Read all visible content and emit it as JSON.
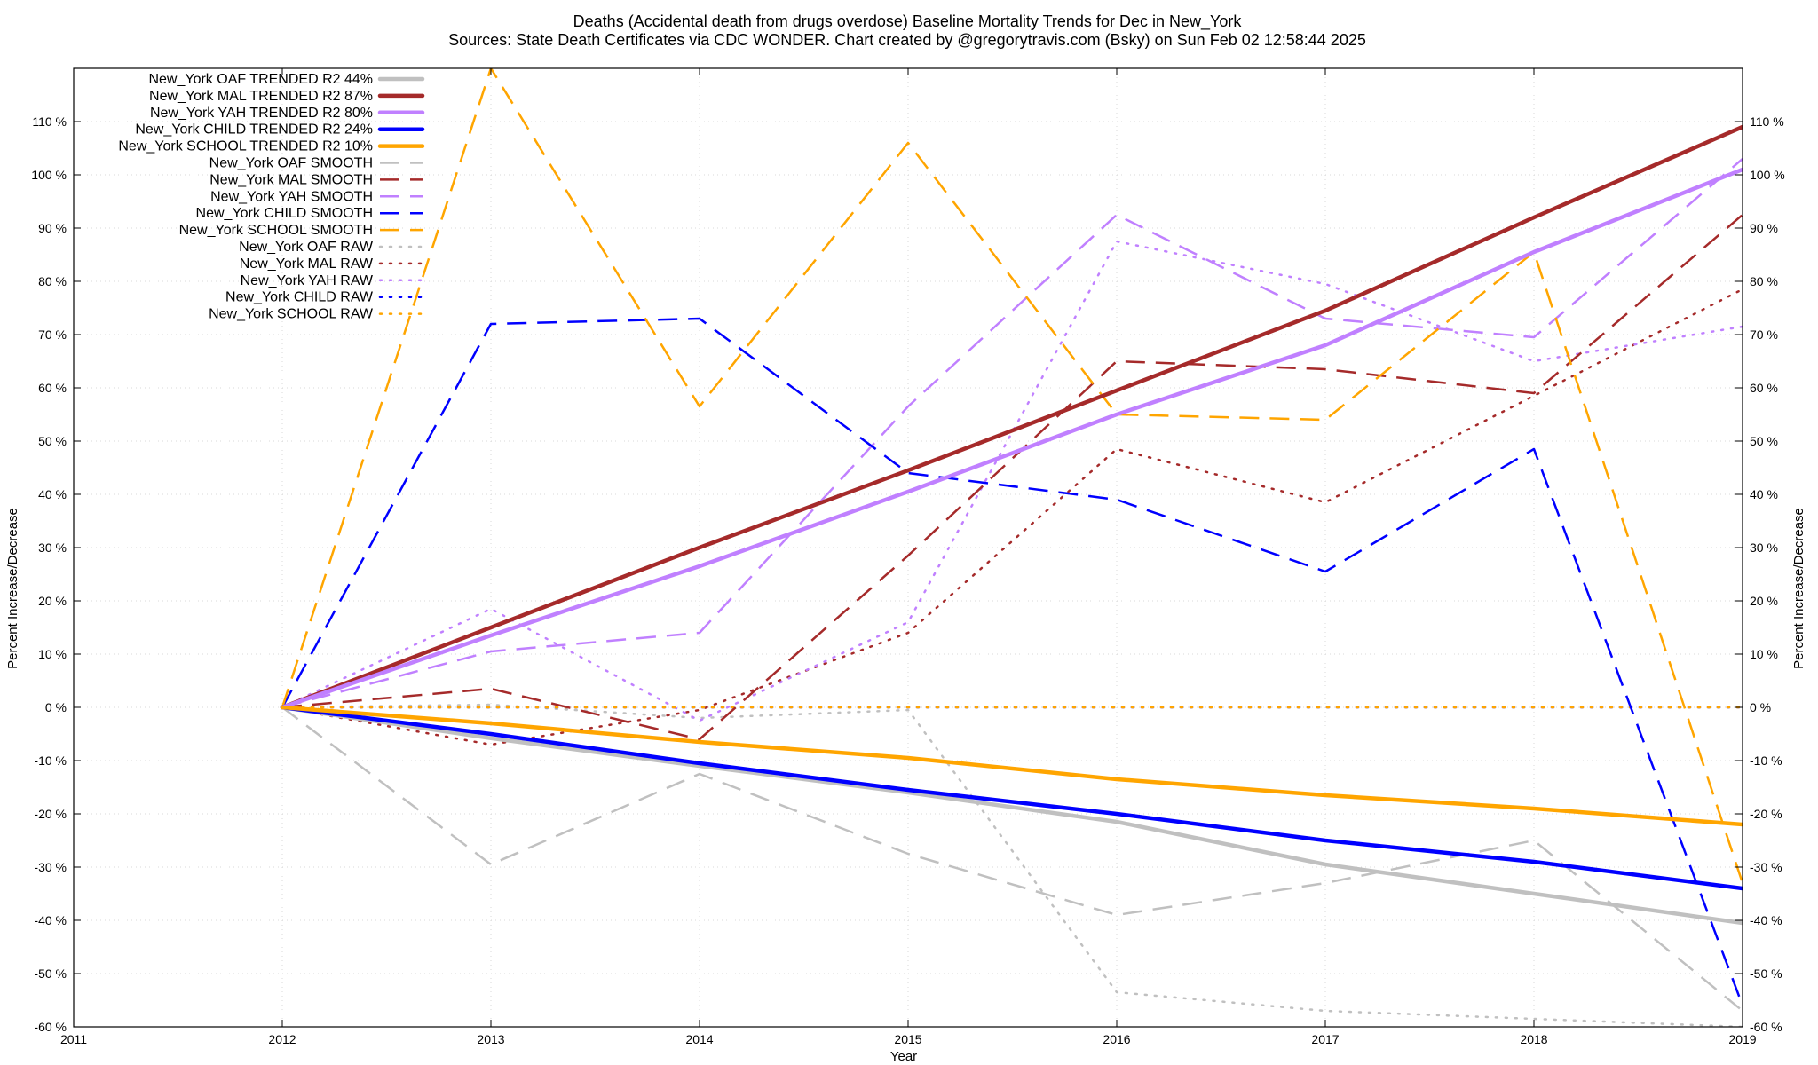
{
  "chart_data": {
    "type": "line",
    "title_line1": "Deaths (Accidental death from drugs overdose)  Baseline Mortality Trends for Dec in New_York",
    "title_line2": "Sources: State Death Certificates via CDC WONDER.              Chart created by @gregorytravis.com (Bsky) on Sun Feb 02 12:58:44 2025",
    "xlabel": "Year",
    "ylabel_left": "Percent Increase/Decrease",
    "ylabel_right": "Percent Increase/Decrease",
    "xlim": [
      2011,
      2019
    ],
    "ylim": [
      -60,
      120
    ],
    "x_ticks": [
      2011,
      2012,
      2013,
      2014,
      2015,
      2016,
      2017,
      2018,
      2019
    ],
    "x_tick_labels": [
      "2011",
      "2012",
      "2013",
      "2014",
      "2015",
      "2016",
      "2017",
      "2018",
      "2019"
    ],
    "y_ticks": [
      -60,
      -50,
      -40,
      -30,
      -20,
      -10,
      0,
      10,
      20,
      30,
      40,
      50,
      60,
      70,
      80,
      90,
      100,
      110
    ],
    "y_tick_labels": [
      "-60 %",
      "-50 %",
      "-40 %",
      "-30 %",
      "-20 %",
      "-10 %",
      "0 %",
      "10 %",
      "20 %",
      "30 %",
      "40 %",
      "50 %",
      "60 %",
      "70 %",
      "80 %",
      "90 %",
      "100 %",
      "110 %"
    ],
    "grid": true,
    "legend_position": "top-left",
    "x": [
      2012,
      2013,
      2014,
      2015,
      2016,
      2017,
      2018,
      2019
    ],
    "series": [
      {
        "name": "New_York OAF TRENDED R2  44%",
        "color": "#c0c0c0",
        "style": "solid",
        "values": [
          0,
          -5.8,
          -11.0,
          -16.0,
          -21.5,
          -29.5,
          -35.0,
          -40.5
        ]
      },
      {
        "name": "New_York MAL TRENDED R2  87%",
        "color": "#a52a2a",
        "style": "solid",
        "values": [
          0,
          15.0,
          30.0,
          44.5,
          59.5,
          74.5,
          92.0,
          109.0
        ]
      },
      {
        "name": "New_York YAH TRENDED R2  80%",
        "color": "#c080ff",
        "style": "solid",
        "values": [
          0,
          13.5,
          26.5,
          40.5,
          55.0,
          68.0,
          85.5,
          101.0
        ]
      },
      {
        "name": "New_York CHILD TRENDED R2  24%",
        "color": "#0000ff",
        "style": "solid",
        "values": [
          0,
          -5.0,
          -10.5,
          -15.5,
          -20.0,
          -25.0,
          -29.0,
          -34.0
        ]
      },
      {
        "name": "New_York SCHOOL TRENDED R2  10%",
        "color": "#ffa500",
        "style": "solid",
        "values": [
          0,
          -3.0,
          -6.5,
          -9.5,
          -13.5,
          -16.5,
          -19.0,
          -22.0
        ]
      },
      {
        "name": "New_York OAF SMOOTH",
        "color": "#c0c0c0",
        "style": "dashed",
        "values": [
          0,
          -29.5,
          -12.5,
          -27.5,
          -39.0,
          -33.0,
          -25.0,
          -57.0
        ]
      },
      {
        "name": "New_York MAL SMOOTH",
        "color": "#a52a2a",
        "style": "dashed",
        "values": [
          0,
          3.5,
          -6.0,
          28.5,
          65.0,
          63.5,
          59.0,
          92.5
        ]
      },
      {
        "name": "New_York YAH SMOOTH",
        "color": "#c080ff",
        "style": "dashed",
        "values": [
          0,
          10.5,
          14.0,
          56.5,
          92.5,
          73.0,
          69.5,
          103.0
        ]
      },
      {
        "name": "New_York CHILD SMOOTH",
        "color": "#0000ff",
        "style": "dashed",
        "values": [
          0,
          72.0,
          73.0,
          44.0,
          39.0,
          25.5,
          48.5,
          -56.0
        ]
      },
      {
        "name": "New_York SCHOOL SMOOTH",
        "color": "#ffa500",
        "style": "dashed",
        "values": [
          0,
          120.0,
          56.5,
          106.0,
          55.0,
          54.0,
          85.5,
          -33.0
        ]
      },
      {
        "name": "New_York OAF RAW",
        "color": "#c0c0c0",
        "style": "dotted",
        "values": [
          0,
          0.5,
          -2.0,
          -0.5,
          -53.5,
          -57.0,
          -58.5,
          -60.0
        ]
      },
      {
        "name": "New_York MAL RAW",
        "color": "#a52a2a",
        "style": "dotted",
        "values": [
          0,
          -7.0,
          -0.5,
          14.0,
          48.5,
          38.5,
          58.5,
          78.5
        ]
      },
      {
        "name": "New_York YAH RAW",
        "color": "#c080ff",
        "style": "dotted",
        "values": [
          0,
          18.5,
          -2.5,
          16.0,
          87.5,
          79.5,
          65.0,
          71.5
        ]
      },
      {
        "name": "New_York CHILD RAW",
        "color": "#0000ff",
        "style": "dotted",
        "values": [
          0,
          0,
          0,
          0,
          0,
          0,
          0,
          0
        ]
      },
      {
        "name": "New_York SCHOOL RAW",
        "color": "#ffa500",
        "style": "dotted",
        "values": [
          0,
          0,
          0,
          0,
          0,
          0,
          0,
          0
        ]
      }
    ]
  }
}
